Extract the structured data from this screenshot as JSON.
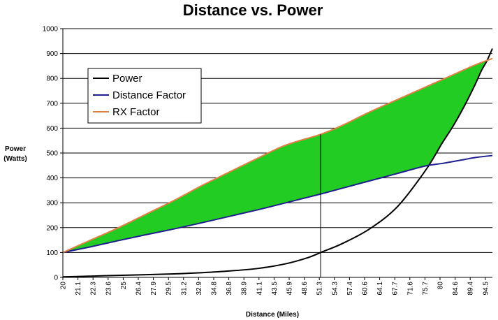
{
  "chart_data": {
    "type": "line",
    "title": "Distance vs. Power",
    "xlabel": "Distance (Miles)",
    "ylabel_line1": "Power",
    "ylabel_line2": "(Watts)",
    "ylim": [
      0,
      1000
    ],
    "yticks": [
      0,
      100,
      200,
      300,
      400,
      500,
      600,
      700,
      800,
      900,
      1000
    ],
    "xlim": [
      20,
      97
    ],
    "x_tick_labels": [
      "20",
      "21.1",
      "22.3",
      "23.6",
      "25",
      "26.4",
      "27.9",
      "29.5",
      "31.2",
      "32.9",
      "34.8",
      "36.8",
      "38.9",
      "41.1",
      "43.5",
      "45.9",
      "48.6",
      "51.3",
      "54.3",
      "57.4",
      "60.6",
      "64.1",
      "67.7",
      "71.6",
      "75.7",
      "80",
      "84.6",
      "89.4",
      "94.5"
    ],
    "grid": "horizontal",
    "legend_position": "top-left",
    "vertical_marker_x": 66.2,
    "fill_color": "#22cc22",
    "series": [
      {
        "name": "Power",
        "color": "#000000",
        "x": [
          20,
          25,
          30,
          35,
          40,
          45,
          50,
          55,
          60,
          64,
          66.2,
          70,
          75,
          80,
          85,
          88,
          90,
          92,
          94,
          95,
          96,
          97
        ],
        "y": [
          2,
          5,
          8,
          11,
          14,
          19,
          26,
          36,
          55,
          80,
          100,
          135,
          195,
          285,
          430,
          540,
          610,
          690,
          780,
          830,
          870,
          920
        ]
      },
      {
        "name": "Distance Factor",
        "color": "#1f1f8f",
        "x": [
          20,
          25,
          30,
          35,
          40,
          45,
          50,
          55,
          60,
          66.2,
          70,
          75,
          80,
          85,
          88,
          90,
          92,
          94,
          97
        ],
        "y": [
          100,
          123,
          148,
          172,
          195,
          220,
          246,
          272,
          300,
          335,
          358,
          388,
          418,
          448,
          458,
          466,
          474,
          482,
          490
        ]
      },
      {
        "name": "RX Factor",
        "color": "#e08040",
        "x": [
          20,
          25,
          30,
          35,
          40,
          45,
          50,
          55,
          60,
          66.2,
          70,
          75,
          80,
          85,
          90,
          94,
          97
        ],
        "y": [
          100,
          150,
          200,
          255,
          310,
          370,
          425,
          480,
          532,
          575,
          610,
          665,
          715,
          765,
          815,
          855,
          880
        ]
      }
    ]
  }
}
